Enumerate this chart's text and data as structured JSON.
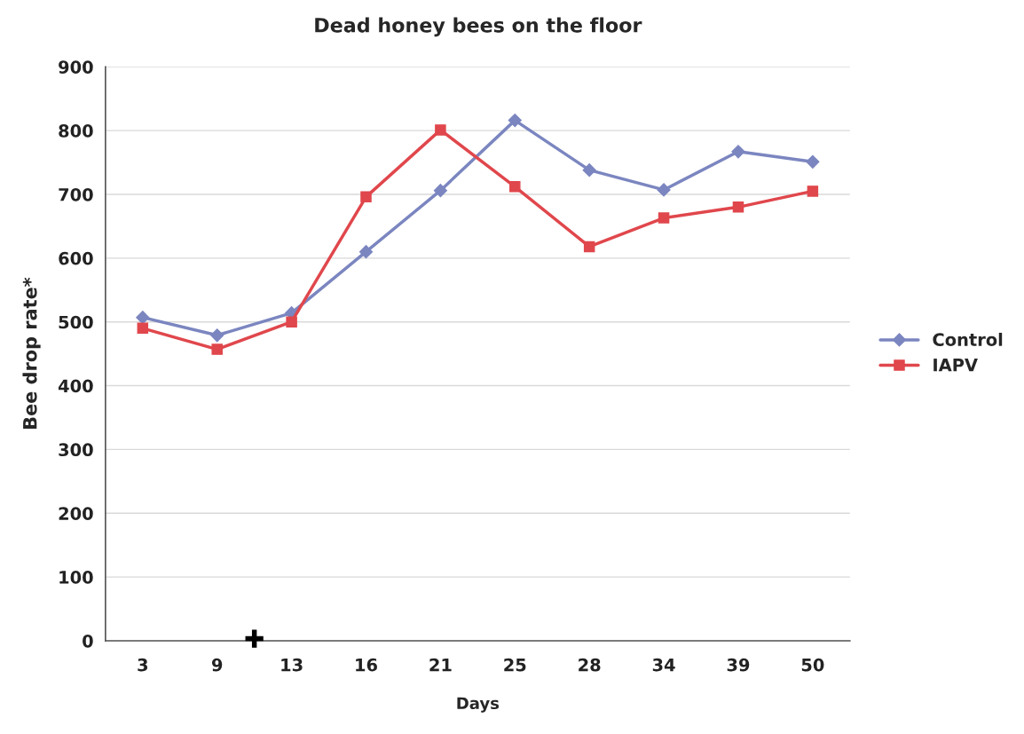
{
  "chart_data": {
    "type": "line",
    "title": "Dead honey bees on the floor",
    "xlabel": "Days",
    "ylabel": "Bee drop rate*",
    "categories": [
      "3",
      "9",
      "13",
      "16",
      "21",
      "25",
      "28",
      "34",
      "39",
      "50"
    ],
    "series": [
      {
        "name": "Control",
        "color": "#7b86c0",
        "marker": "diamond",
        "values": [
          507,
          479,
          514,
          610,
          706,
          816,
          738,
          707,
          767,
          751
        ]
      },
      {
        "name": "IAPV",
        "color": "#e0474c",
        "marker": "square",
        "values": [
          490,
          457,
          500,
          696,
          801,
          712,
          618,
          663,
          680,
          705
        ]
      }
    ],
    "ylim": [
      0,
      900
    ],
    "yticks": [
      0,
      100,
      200,
      300,
      400,
      500,
      600,
      700,
      800,
      900
    ],
    "annotations": [
      "✚"
    ],
    "grid": "y",
    "legend": "right",
    "line_style": "solid"
  }
}
